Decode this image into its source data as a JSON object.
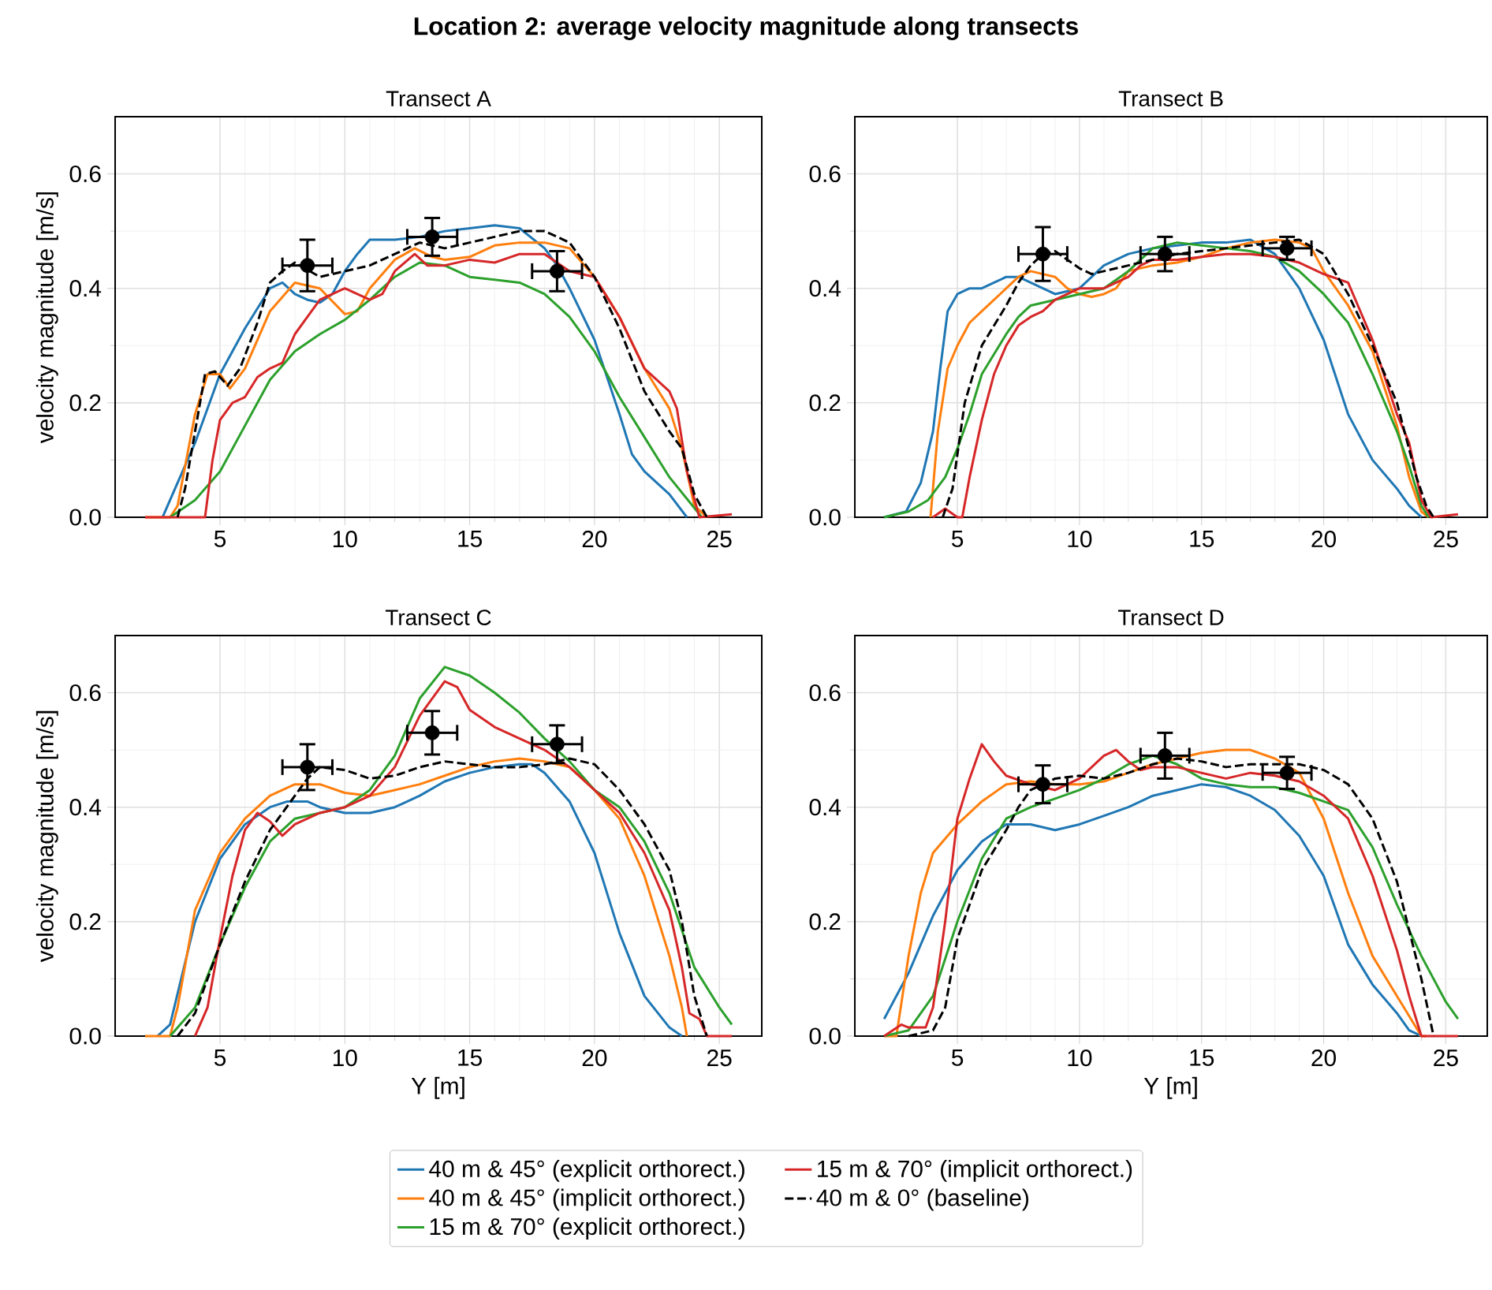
{
  "chart_data": [
    {
      "type": "line",
      "title": "Location 2: average velocity magnitude along transects",
      "subtitle": "Transect A",
      "ylabel": "velocity magnitude [m/s]",
      "xlim": [
        0.8,
        26.7
      ],
      "ylim": [
        0,
        0.7
      ],
      "xticks": [
        5,
        10,
        15,
        20,
        25
      ],
      "yticks": [
        {
          "value": 0,
          "label": "0.0"
        },
        {
          "value": 0.2,
          "label": "0.2"
        },
        {
          "value": 0.4,
          "label": "0.4"
        },
        {
          "value": 0.6,
          "label": "0.6"
        }
      ],
      "grid": true,
      "legend": "bottom",
      "series": [
        {
          "name": "40 m & 45° (explicit orthorect.)",
          "color": "#1f77b4",
          "x": [
            2.7,
            4,
            5,
            6,
            7,
            7.5,
            8,
            8.5,
            9,
            9.5,
            10,
            10.5,
            11,
            12,
            13,
            14,
            15,
            16,
            17,
            18,
            18.5,
            19,
            20,
            21,
            21.5,
            22,
            23,
            23.7
          ],
          "values": [
            0,
            0.13,
            0.25,
            0.33,
            0.4,
            0.41,
            0.39,
            0.38,
            0.375,
            0.39,
            0.43,
            0.46,
            0.485,
            0.485,
            0.49,
            0.5,
            0.505,
            0.51,
            0.505,
            0.47,
            0.44,
            0.4,
            0.31,
            0.18,
            0.11,
            0.08,
            0.04,
            0
          ]
        },
        {
          "name": "40 m & 45° (implicit orthorect.)",
          "color": "#ff7f0e",
          "x": [
            2,
            3,
            3.3,
            4,
            4.5,
            5,
            5.4,
            6,
            7,
            8,
            9,
            10,
            10.5,
            11,
            12,
            12.8,
            13.5,
            14,
            15,
            16,
            17,
            18,
            19,
            20,
            21,
            22,
            23,
            23.5,
            24,
            24.5
          ],
          "values": [
            0,
            0,
            0.02,
            0.18,
            0.25,
            0.25,
            0.225,
            0.26,
            0.36,
            0.41,
            0.4,
            0.355,
            0.36,
            0.4,
            0.45,
            0.47,
            0.455,
            0.45,
            0.455,
            0.475,
            0.48,
            0.48,
            0.47,
            0.42,
            0.35,
            0.26,
            0.19,
            0.12,
            0.02,
            0
          ]
        },
        {
          "name": "15 m & 70° (explicit orthorect.)",
          "color": "#2ca02c",
          "x": [
            3,
            4,
            5,
            6,
            7,
            8,
            9,
            10,
            11,
            12,
            13,
            14,
            15,
            16,
            17,
            18,
            19,
            20,
            21,
            22,
            23,
            24.3
          ],
          "values": [
            0,
            0.03,
            0.08,
            0.16,
            0.24,
            0.29,
            0.32,
            0.345,
            0.38,
            0.42,
            0.445,
            0.44,
            0.42,
            0.415,
            0.41,
            0.39,
            0.35,
            0.29,
            0.21,
            0.14,
            0.07,
            0
          ]
        },
        {
          "name": "15 m & 70° (implicit orthorect.)",
          "color": "#d62728",
          "x": [
            2,
            4.4,
            4.7,
            5,
            5.5,
            6,
            6.5,
            7,
            7.5,
            8,
            8.5,
            9,
            10,
            11,
            11.5,
            12,
            12.8,
            13.3,
            14,
            15,
            16,
            17,
            18,
            19,
            20,
            21,
            22,
            23,
            23.3,
            23.7,
            24.2,
            25.5
          ],
          "values": [
            0,
            0,
            0.1,
            0.17,
            0.2,
            0.21,
            0.245,
            0.26,
            0.27,
            0.32,
            0.35,
            0.38,
            0.4,
            0.38,
            0.39,
            0.43,
            0.46,
            0.44,
            0.44,
            0.45,
            0.445,
            0.46,
            0.46,
            0.43,
            0.42,
            0.35,
            0.26,
            0.22,
            0.19,
            0.08,
            0,
            0.005
          ]
        },
        {
          "name": "40 m & 0° (baseline)",
          "color": "#000000",
          "line_style": "dashed",
          "x": [
            3.3,
            3.6,
            4,
            4.4,
            4.8,
            5.3,
            5.8,
            6.5,
            7,
            7.5,
            8,
            9,
            10,
            11,
            12,
            13,
            14,
            15,
            16,
            17,
            18,
            19,
            20,
            21,
            22,
            23,
            23.5,
            24,
            24.5
          ],
          "values": [
            0,
            0.05,
            0.15,
            0.25,
            0.255,
            0.23,
            0.26,
            0.34,
            0.41,
            0.43,
            0.445,
            0.42,
            0.43,
            0.44,
            0.46,
            0.48,
            0.47,
            0.48,
            0.49,
            0.5,
            0.5,
            0.48,
            0.42,
            0.33,
            0.22,
            0.15,
            0.12,
            0.04,
            0
          ]
        },
        {
          "type": "scatter",
          "color": "#000000",
          "x": [
            8.5,
            13.5,
            18.5
          ],
          "values": [
            0.44,
            0.49,
            0.43
          ],
          "errors": [
            0.045,
            0.033,
            0.035
          ],
          "xerrors": [
            1,
            1,
            1
          ]
        }
      ]
    },
    {
      "type": "line",
      "title": "Transect B",
      "xlim": [
        0.8,
        26.7
      ],
      "ylim": [
        0,
        0.7
      ],
      "xticks": [
        5,
        10,
        15,
        20,
        25
      ],
      "yticks": [
        {
          "value": 0,
          "label": "0.0"
        },
        {
          "value": 0.2,
          "label": "0.2"
        },
        {
          "value": 0.4,
          "label": "0.4"
        },
        {
          "value": 0.6,
          "label": "0.6"
        }
      ],
      "grid": true,
      "series": [
        {
          "color": "#1f77b4",
          "x": [
            2,
            2.9,
            3.5,
            4,
            4.3,
            4.6,
            5,
            5.5,
            6,
            6.5,
            7,
            7.5,
            8,
            8.5,
            9,
            10,
            11,
            12,
            13,
            14,
            15,
            16,
            17,
            18,
            19,
            20,
            21,
            22,
            23,
            23.5,
            24
          ],
          "values": [
            0,
            0.01,
            0.06,
            0.15,
            0.26,
            0.36,
            0.39,
            0.4,
            0.4,
            0.41,
            0.42,
            0.42,
            0.41,
            0.4,
            0.39,
            0.4,
            0.44,
            0.46,
            0.47,
            0.475,
            0.48,
            0.48,
            0.485,
            0.46,
            0.4,
            0.31,
            0.18,
            0.1,
            0.05,
            0.02,
            0
          ]
        },
        {
          "color": "#ff7f0e",
          "x": [
            3.9,
            4.2,
            4.6,
            5,
            5.5,
            6,
            7,
            7.5,
            8,
            9,
            9.5,
            10,
            10.5,
            11,
            11.5,
            12,
            13,
            14,
            15,
            16,
            17,
            18,
            19,
            19.5,
            20,
            21,
            22,
            23,
            23.5,
            24,
            24.3
          ],
          "values": [
            0,
            0.15,
            0.26,
            0.3,
            0.34,
            0.36,
            0.4,
            0.42,
            0.43,
            0.42,
            0.4,
            0.39,
            0.385,
            0.39,
            0.4,
            0.43,
            0.44,
            0.445,
            0.455,
            0.47,
            0.48,
            0.485,
            0.48,
            0.47,
            0.43,
            0.37,
            0.29,
            0.16,
            0.07,
            0.01,
            0
          ]
        },
        {
          "color": "#2ca02c",
          "x": [
            2,
            3,
            3.8,
            4.5,
            5,
            5.5,
            6,
            7,
            7.5,
            8,
            9,
            10,
            11,
            12,
            13,
            14,
            15,
            16,
            17,
            18,
            19,
            20,
            21,
            22,
            23,
            23.5,
            24,
            24.3
          ],
          "values": [
            0,
            0.01,
            0.03,
            0.07,
            0.12,
            0.18,
            0.25,
            0.32,
            0.35,
            0.37,
            0.38,
            0.39,
            0.4,
            0.43,
            0.47,
            0.48,
            0.475,
            0.47,
            0.465,
            0.455,
            0.43,
            0.39,
            0.34,
            0.25,
            0.15,
            0.09,
            0.02,
            0
          ]
        },
        {
          "color": "#d62728",
          "x": [
            4,
            4.5,
            5,
            5.2,
            5.5,
            6,
            6.5,
            7,
            7.5,
            8,
            8.5,
            9,
            10,
            11,
            12,
            12.5,
            13,
            14,
            15,
            16,
            17,
            18,
            19,
            20,
            21,
            22,
            23,
            23.5,
            24,
            24.4,
            25.5
          ],
          "values": [
            0,
            0.015,
            0,
            0,
            0.07,
            0.17,
            0.25,
            0.3,
            0.335,
            0.35,
            0.36,
            0.38,
            0.4,
            0.4,
            0.42,
            0.44,
            0.45,
            0.45,
            0.455,
            0.46,
            0.46,
            0.455,
            0.445,
            0.425,
            0.41,
            0.31,
            0.18,
            0.13,
            0.03,
            0,
            0.005
          ]
        },
        {
          "color": "#000000",
          "line_style": "dashed",
          "x": [
            4.4,
            4.8,
            5.3,
            6,
            7,
            7.5,
            8,
            8.5,
            9,
            9.5,
            10,
            10.5,
            11,
            12,
            13,
            14,
            15,
            16,
            17,
            18,
            19,
            20,
            21,
            22,
            23,
            23.8,
            24.2,
            24.5
          ],
          "values": [
            0,
            0.05,
            0.2,
            0.3,
            0.37,
            0.41,
            0.44,
            0.46,
            0.465,
            0.45,
            0.435,
            0.425,
            0.43,
            0.44,
            0.45,
            0.46,
            0.465,
            0.47,
            0.475,
            0.48,
            0.485,
            0.46,
            0.39,
            0.3,
            0.2,
            0.07,
            0.02,
            0
          ]
        },
        {
          "type": "scatter",
          "color": "#000000",
          "x": [
            8.5,
            13.5,
            18.5
          ],
          "values": [
            0.46,
            0.46,
            0.47
          ],
          "errors": [
            0.047,
            0.03,
            0.02
          ],
          "xerrors": [
            1,
            1,
            1
          ]
        }
      ]
    },
    {
      "type": "line",
      "title": "Transect C",
      "xlabel": "Y [m]",
      "ylabel": "velocity magnitude [m/s]",
      "xlim": [
        0.8,
        26.7
      ],
      "ylim": [
        0,
        0.7
      ],
      "xticks": [
        5,
        10,
        15,
        20,
        25
      ],
      "yticks": [
        {
          "value": 0,
          "label": "0.0"
        },
        {
          "value": 0.2,
          "label": "0.2"
        },
        {
          "value": 0.4,
          "label": "0.4"
        },
        {
          "value": 0.6,
          "label": "0.6"
        }
      ],
      "grid": true,
      "series": [
        {
          "color": "#1f77b4",
          "x": [
            2.5,
            3,
            4,
            5,
            6,
            7,
            7.7,
            8.5,
            9,
            10,
            11,
            12,
            13,
            14,
            15,
            16,
            17,
            17.5,
            18,
            19,
            20,
            21,
            22,
            23,
            23.5
          ],
          "values": [
            0,
            0.02,
            0.2,
            0.31,
            0.37,
            0.4,
            0.41,
            0.41,
            0.4,
            0.39,
            0.39,
            0.4,
            0.42,
            0.445,
            0.46,
            0.47,
            0.475,
            0.475,
            0.46,
            0.41,
            0.32,
            0.18,
            0.07,
            0.015,
            0
          ]
        },
        {
          "color": "#ff7f0e",
          "x": [
            2,
            3,
            3.3,
            4,
            5,
            6,
            7,
            8,
            9,
            10,
            11,
            12,
            13,
            14,
            15,
            16,
            17,
            18,
            19,
            20,
            21,
            22,
            23,
            23.5,
            23.7
          ],
          "values": [
            0,
            0,
            0.05,
            0.22,
            0.32,
            0.38,
            0.42,
            0.44,
            0.44,
            0.425,
            0.42,
            0.43,
            0.44,
            0.455,
            0.47,
            0.48,
            0.485,
            0.48,
            0.47,
            0.43,
            0.38,
            0.28,
            0.14,
            0.05,
            0
          ]
        },
        {
          "color": "#2ca02c",
          "x": [
            3,
            4,
            5,
            6,
            7,
            8,
            9,
            10,
            11,
            12,
            13,
            14,
            15,
            16,
            17,
            18,
            19,
            20,
            21,
            22,
            23,
            24,
            25,
            25.5
          ],
          "values": [
            0,
            0.05,
            0.16,
            0.26,
            0.34,
            0.38,
            0.39,
            0.4,
            0.43,
            0.49,
            0.59,
            0.645,
            0.63,
            0.6,
            0.565,
            0.52,
            0.48,
            0.43,
            0.4,
            0.34,
            0.25,
            0.12,
            0.05,
            0.02
          ]
        },
        {
          "color": "#d62728",
          "x": [
            4,
            4.5,
            5,
            5.5,
            6,
            6.5,
            7,
            7.5,
            8,
            9,
            10,
            11,
            12,
            13,
            14,
            14.5,
            15,
            16,
            17,
            18,
            19,
            20,
            21,
            22,
            23,
            23.5,
            23.8,
            24.2,
            24.5,
            25.5
          ],
          "values": [
            0,
            0.05,
            0.17,
            0.28,
            0.36,
            0.39,
            0.375,
            0.35,
            0.37,
            0.39,
            0.4,
            0.42,
            0.47,
            0.56,
            0.62,
            0.61,
            0.57,
            0.54,
            0.52,
            0.5,
            0.47,
            0.43,
            0.39,
            0.32,
            0.22,
            0.12,
            0.04,
            0.03,
            0,
            0
          ]
        },
        {
          "color": "#000000",
          "line_style": "dashed",
          "x": [
            3.3,
            4,
            5,
            6,
            7,
            8,
            8.5,
            9,
            10,
            11,
            12,
            13,
            14,
            15,
            16,
            17,
            18,
            19,
            20,
            21,
            22,
            23,
            23.5,
            24,
            24.5
          ],
          "values": [
            0,
            0.04,
            0.16,
            0.27,
            0.36,
            0.42,
            0.45,
            0.47,
            0.465,
            0.45,
            0.455,
            0.47,
            0.48,
            0.475,
            0.47,
            0.47,
            0.475,
            0.485,
            0.475,
            0.43,
            0.37,
            0.29,
            0.2,
            0.07,
            0
          ]
        },
        {
          "type": "scatter",
          "color": "#000000",
          "x": [
            8.5,
            13.5,
            18.5
          ],
          "values": [
            0.47,
            0.53,
            0.51
          ],
          "errors": [
            0.04,
            0.038,
            0.033
          ],
          "xerrors": [
            1,
            1,
            1
          ]
        }
      ]
    },
    {
      "type": "line",
      "title": "Transect D",
      "xlabel": "Y [m]",
      "xlim": [
        0.8,
        26.7
      ],
      "ylim": [
        0,
        0.7
      ],
      "xticks": [
        5,
        10,
        15,
        20,
        25
      ],
      "yticks": [
        {
          "value": 0,
          "label": "0.0"
        },
        {
          "value": 0.2,
          "label": "0.2"
        },
        {
          "value": 0.4,
          "label": "0.4"
        },
        {
          "value": 0.6,
          "label": "0.6"
        }
      ],
      "grid": true,
      "series": [
        {
          "color": "#1f77b4",
          "x": [
            2,
            3,
            4,
            5,
            6,
            7,
            8,
            9,
            10,
            11,
            12,
            13,
            14,
            15,
            16,
            17,
            18,
            19,
            20,
            21,
            22,
            23,
            23.5,
            24
          ],
          "values": [
            0.03,
            0.11,
            0.21,
            0.29,
            0.34,
            0.37,
            0.37,
            0.36,
            0.37,
            0.385,
            0.4,
            0.42,
            0.43,
            0.44,
            0.435,
            0.42,
            0.395,
            0.35,
            0.28,
            0.16,
            0.09,
            0.04,
            0.01,
            0
          ]
        },
        {
          "color": "#ff7f0e",
          "x": [
            2,
            2.5,
            3,
            3.5,
            4,
            5,
            6,
            7,
            8,
            9,
            10,
            11,
            12,
            13,
            14,
            15,
            16,
            17,
            18,
            19,
            20,
            21,
            22,
            23,
            24,
            24.2
          ],
          "values": [
            0,
            0,
            0.14,
            0.25,
            0.32,
            0.37,
            0.41,
            0.44,
            0.445,
            0.44,
            0.44,
            0.445,
            0.46,
            0.475,
            0.485,
            0.495,
            0.5,
            0.5,
            0.485,
            0.46,
            0.38,
            0.25,
            0.14,
            0.07,
            0,
            0
          ]
        },
        {
          "color": "#2ca02c",
          "x": [
            2,
            3,
            4,
            5,
            6,
            7,
            8,
            9,
            10,
            11,
            12,
            13,
            14,
            15,
            16,
            17,
            18,
            19,
            20,
            21,
            22,
            23,
            24,
            25,
            25.5
          ],
          "values": [
            0,
            0.01,
            0.07,
            0.2,
            0.31,
            0.38,
            0.4,
            0.415,
            0.43,
            0.45,
            0.475,
            0.49,
            0.475,
            0.45,
            0.44,
            0.435,
            0.435,
            0.425,
            0.41,
            0.395,
            0.33,
            0.23,
            0.14,
            0.06,
            0.03
          ]
        },
        {
          "color": "#d62728",
          "x": [
            2,
            2.7,
            3,
            3.7,
            4,
            4.5,
            5,
            5.5,
            6,
            6.5,
            7,
            8,
            9,
            10,
            11,
            11.5,
            12,
            12.5,
            13,
            14,
            15,
            16,
            17,
            18,
            19,
            20,
            21,
            22,
            23,
            23.5,
            24,
            25.5
          ],
          "values": [
            0,
            0.02,
            0.015,
            0.015,
            0.05,
            0.2,
            0.38,
            0.45,
            0.51,
            0.48,
            0.455,
            0.44,
            0.43,
            0.45,
            0.49,
            0.5,
            0.48,
            0.465,
            0.47,
            0.47,
            0.46,
            0.45,
            0.46,
            0.455,
            0.445,
            0.42,
            0.38,
            0.28,
            0.15,
            0.07,
            0,
            0
          ]
        },
        {
          "color": "#000000",
          "line_style": "dashed",
          "x": [
            3,
            4,
            4.5,
            5,
            6,
            7,
            7.5,
            8,
            9,
            10,
            11,
            12,
            13,
            14,
            15,
            16,
            17,
            18,
            19,
            20,
            21,
            22,
            23,
            24,
            24.5
          ],
          "values": [
            0,
            0.01,
            0.05,
            0.17,
            0.29,
            0.36,
            0.4,
            0.43,
            0.45,
            0.455,
            0.45,
            0.46,
            0.475,
            0.485,
            0.48,
            0.47,
            0.475,
            0.475,
            0.475,
            0.465,
            0.44,
            0.38,
            0.27,
            0.1,
            0
          ]
        },
        {
          "type": "scatter",
          "color": "#000000",
          "x": [
            8.5,
            13.5,
            18.5
          ],
          "values": [
            0.44,
            0.49,
            0.46
          ],
          "errors": [
            0.033,
            0.04,
            0.028
          ],
          "xerrors": [
            1,
            1,
            1
          ]
        }
      ]
    }
  ]
}
